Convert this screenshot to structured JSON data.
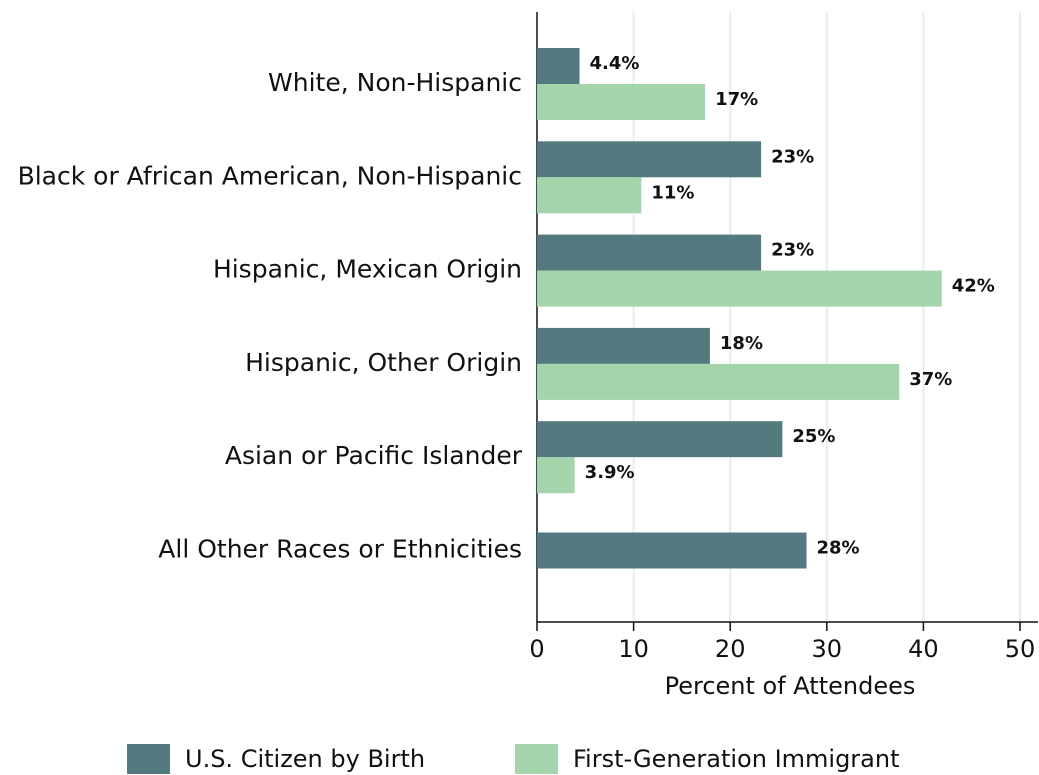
{
  "chart_data": {
    "type": "hbar",
    "xlabel": "Percent of Attendees",
    "categories": [
      "White, Non-Hispanic",
      "Black or African American, Non-Hispanic",
      "Hispanic, Mexican Origin",
      "Hispanic, Other Origin",
      "Asian or Pacific Islander",
      "All Other Races or Ethnicities"
    ],
    "series": [
      {
        "name": "U.S. Citizen by Birth",
        "color": "#537a7e",
        "values": [
          4.4,
          23.2,
          23.2,
          17.9,
          25.4,
          27.9
        ],
        "value_labels": [
          "4.4%",
          "23%",
          "23%",
          "18%",
          "25%",
          "28%"
        ]
      },
      {
        "name": "First-Generation Immigrant",
        "color": "#a3d4ab",
        "values": [
          17.4,
          10.8,
          41.9,
          37.5,
          3.9,
          null
        ],
        "value_labels": [
          "17%",
          "11%",
          "42%",
          "37%",
          "3.9%",
          null
        ]
      }
    ],
    "xlim": [
      0,
      50
    ],
    "xticks": [
      0,
      10,
      20,
      30,
      40,
      50
    ],
    "grid": true,
    "legend": "bottom"
  }
}
